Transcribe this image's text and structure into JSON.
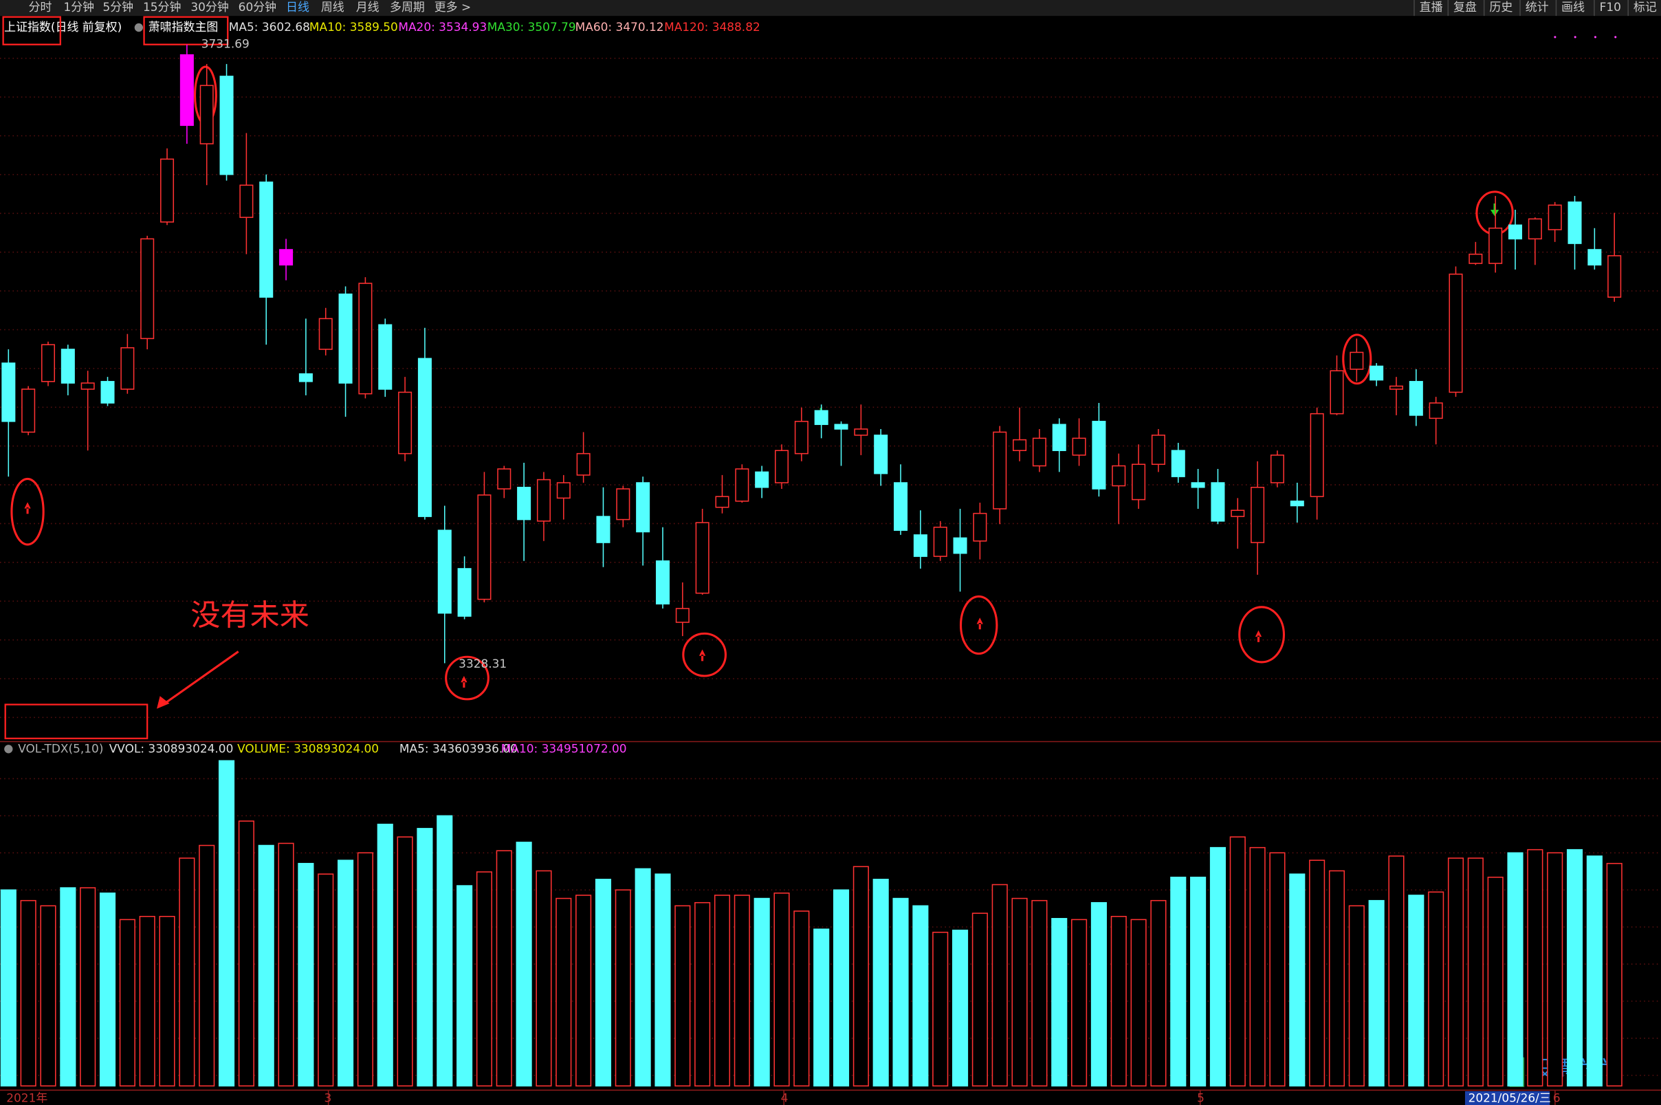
{
  "toolbar": {
    "left": [
      "分时",
      "1分钟",
      "5分钟",
      "15分钟",
      "30分钟",
      "60分钟",
      "日线",
      "周线",
      "月线",
      "多周期",
      "更多 >"
    ],
    "active": "#4aa8ff",
    "right": [
      "直播",
      "复盘",
      "历史",
      "统计",
      "画线",
      "F10",
      "标记"
    ]
  },
  "legend": {
    "index_name": "上证指数(日线 前复权)",
    "formula": "萧啸指数主图",
    "ma": [
      {
        "label": "MA5: 3602.68",
        "color": "#e0e0e0"
      },
      {
        "label": "MA10: 3589.50",
        "color": "#e8e800"
      },
      {
        "label": "MA20: 3534.93",
        "color": "#ff40ff"
      },
      {
        "label": "MA30: 3507.79",
        "color": "#30e030"
      },
      {
        "label": "MA60: 3470.12",
        "color": "#ffb0b0"
      },
      {
        "label": "MA120: 3488.82",
        "color": "#ff3030"
      }
    ]
  },
  "volume_legend": [
    {
      "label": "VOL-TDX(5,10)",
      "color": "#b0b0b0"
    },
    {
      "label": "VVOL: 330893024.00",
      "color": "#e0e0e0"
    },
    {
      "label": "VOLUME: 330893024.00",
      "color": "#e8e800"
    },
    {
      "label": "MA5: 343603936.00",
      "color": "#e0e0e0"
    },
    {
      "label": "MA10: 334951072.00",
      "color": "#ff40ff"
    }
  ],
  "annotation": "没有未来",
  "date_axis": [
    "2021年",
    "3",
    "4",
    "5",
    "2021/05/26/三",
    "6"
  ],
  "watermark": "股票六六",
  "chart_data": {
    "type": "candlestick",
    "open": [
      3524,
      3479,
      3512,
      3533,
      3507,
      3512,
      3507,
      3540,
      3616,
      3679,
      3667,
      3711,
      3619,
      3642,
      3588,
      3517,
      3533,
      3569,
      3504,
      3549,
      3465,
      3527,
      3415,
      3390,
      3370,
      3442,
      3443,
      3421,
      3436,
      3451,
      3424,
      3422,
      3446,
      3395,
      3355,
      3374,
      3430,
      3434,
      3453,
      3446,
      3465,
      3493,
      3484,
      3477,
      3477,
      3446,
      3412,
      3398,
      3410,
      3408,
      3429,
      3467,
      3457,
      3484,
      3464,
      3486,
      3444,
      3435,
      3458,
      3467,
      3446,
      3446,
      3424,
      3407,
      3446,
      3434,
      3437,
      3491,
      3520,
      3522,
      3507,
      3512,
      3488,
      3505,
      3589,
      3589,
      3614,
      3605,
      3611,
      3629,
      3598,
      3567
    ],
    "high": [
      3533,
      3509,
      3538,
      3536,
      3519,
      3515,
      3543,
      3607,
      3664,
      3731.69,
      3719,
      3719,
      3674,
      3647,
      3605,
      3553,
      3560,
      3574,
      3580,
      3553,
      3515,
      3547,
      3431,
      3398,
      3453,
      3457,
      3459,
      3453,
      3451,
      3479,
      3443,
      3444,
      3450,
      3417,
      3381,
      3429,
      3451,
      3458,
      3457,
      3471,
      3495,
      3497,
      3486,
      3497,
      3481,
      3458,
      3428,
      3421,
      3429,
      3433,
      3483,
      3495,
      3481,
      3488,
      3488,
      3498,
      3465,
      3471,
      3481,
      3472,
      3455,
      3455,
      3436,
      3460,
      3467,
      3446,
      3495,
      3529,
      3540,
      3524,
      3515,
      3520,
      3502,
      3587,
      3603,
      3633,
      3624,
      3619,
      3629,
      3633,
      3612,
      3622
    ],
    "low": [
      3450,
      3477,
      3509,
      3503,
      3467,
      3496,
      3504,
      3533,
      3614,
      3667,
      3640,
      3643,
      3595,
      3536,
      3578,
      3503,
      3529,
      3489,
      3501,
      3502,
      3460,
      3422,
      3328.31,
      3357,
      3368,
      3436,
      3395,
      3408,
      3422,
      3446,
      3391,
      3417,
      3392,
      3364,
      3346,
      3373,
      3426,
      3433,
      3436,
      3442,
      3460,
      3475,
      3457,
      3464,
      3444,
      3412,
      3390,
      3395,
      3375,
      3396,
      3419,
      3460,
      3453,
      3453,
      3457,
      3437,
      3419,
      3429,
      3453,
      3446,
      3429,
      3419,
      3403,
      3386,
      3443,
      3420,
      3422,
      3490,
      3512,
      3509,
      3490,
      3483,
      3471,
      3502,
      3588,
      3583,
      3585,
      3588,
      3603,
      3585,
      3585,
      3564
    ],
    "close": [
      3486,
      3507,
      3536,
      3511,
      3511,
      3498,
      3534,
      3605,
      3657,
      3725,
      3705,
      3647,
      3640,
      3567,
      3598,
      3512,
      3553,
      3511,
      3576,
      3507,
      3505,
      3424,
      3361,
      3359,
      3438,
      3455,
      3422,
      3448,
      3446,
      3465,
      3407,
      3442,
      3414,
      3367,
      3364,
      3420,
      3437,
      3455,
      3443,
      3467,
      3486,
      3484,
      3481,
      3481,
      3452,
      3415,
      3398,
      3417,
      3400,
      3426,
      3479,
      3474,
      3475,
      3467,
      3475,
      3442,
      3457,
      3458,
      3477,
      3450,
      3443,
      3421,
      3428,
      3443,
      3464,
      3431,
      3491,
      3519,
      3531,
      3513,
      3509,
      3490,
      3498,
      3582,
      3595,
      3612,
      3605,
      3618,
      3627,
      3602,
      3588,
      3594
    ],
    "volume": [
      291500000,
      275700000,
      267900000,
      294700000,
      294700000,
      286800000,
      247400000,
      252100000,
      252100000,
      338800000,
      357700000,
      483700000,
      393900000,
      357700000,
      360800000,
      330900000,
      315100000,
      335600000,
      346700000,
      389200000,
      370300000,
      382900000,
      401800000,
      297800000,
      318300000,
      349800000,
      362400000,
      319900000,
      278900000,
      283600000,
      307300000,
      291500000,
      323000000,
      315100000,
      267900000,
      272600000,
      283600000,
      283600000,
      278900000,
      286800000,
      260000000,
      233200000,
      291500000,
      326200000,
      307300000,
      278900000,
      267900000,
      228500000,
      231600000,
      256800000,
      299400000,
      278900000,
      275700000,
      249000000,
      247400000,
      272600000,
      252100000,
      247400000,
      275700000,
      310400000,
      310400000,
      354500000,
      370300000,
      354500000,
      346700000,
      315100000,
      335600000,
      319900000,
      267900000,
      275700000,
      341900000,
      283600000,
      288400000,
      338800000,
      338800000,
      310400000,
      346700000,
      351400000,
      346700000,
      351400000,
      341900000,
      330893024
    ],
    "ylim": [
      3278.6,
      3748.3
    ],
    "volume_ylim": [
      0,
      493200000
    ],
    "up_color": "#ff3232",
    "down_color": "#54ffff",
    "signal_color": "#ff00ff",
    "signal_candles": [
      9,
      14
    ]
  }
}
